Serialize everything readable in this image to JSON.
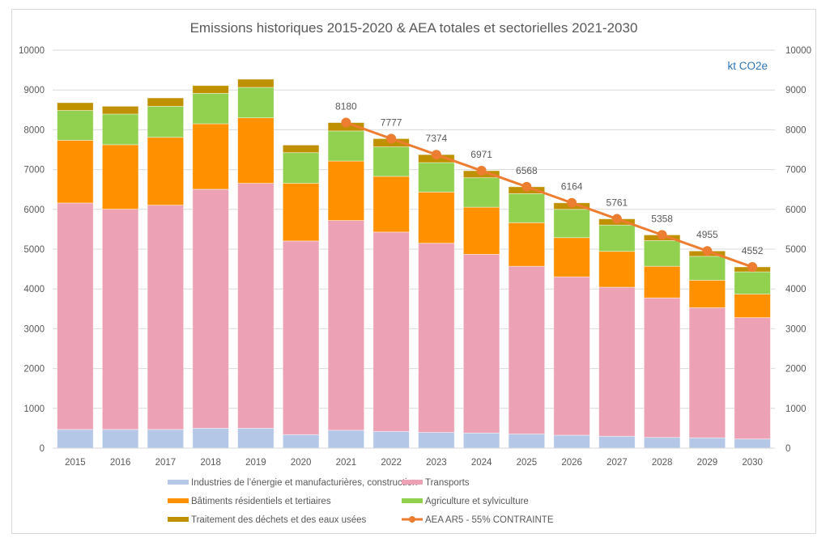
{
  "chart_data": {
    "type": "bar",
    "stacked": true,
    "title": "Emissions historiques 2015-2020 & AEA totales et sectorielles 2021-2030",
    "unit_label": "kt CO2e",
    "xlabel": "",
    "ylabel": "",
    "ylim": [
      0,
      10000
    ],
    "y_ticks": [
      0,
      1000,
      2000,
      3000,
      4000,
      5000,
      6000,
      7000,
      8000,
      9000,
      10000
    ],
    "y_ticks_right": [
      0,
      1000,
      2000,
      3000,
      4000,
      5000,
      6000,
      7000,
      8000,
      9000,
      10000
    ],
    "grid": true,
    "legend_position": "bottom",
    "categories": [
      "2015",
      "2016",
      "2017",
      "2018",
      "2019",
      "2020",
      "2021",
      "2022",
      "2023",
      "2024",
      "2025",
      "2026",
      "2027",
      "2028",
      "2029",
      "2030"
    ],
    "series": [
      {
        "name": "Industries de l’énergie et manufacturières, construction",
        "color": "#b4c7e7",
        "values": [
          470,
          470,
          470,
          500,
          500,
          340,
          450,
          420,
          395,
          380,
          355,
          325,
          300,
          270,
          260,
          230
        ]
      },
      {
        "name": "Transports",
        "color": "#eca2b4",
        "values": [
          5690,
          5535,
          5635,
          6005,
          6155,
          4865,
          5270,
          5010,
          4755,
          4490,
          4215,
          3980,
          3745,
          3505,
          3270,
          3050
        ]
      },
      {
        "name": "Bâtiments résidentiels et tertiaires",
        "color": "#ff9000",
        "values": [
          1575,
          1620,
          1705,
          1645,
          1645,
          1450,
          1495,
          1400,
          1285,
          1185,
          1095,
          985,
          900,
          795,
          690,
          590
        ]
      },
      {
        "name": "Agriculture et sylviculture",
        "color": "#92d050",
        "values": [
          750,
          770,
          780,
          765,
          765,
          770,
          755,
          740,
          740,
          740,
          730,
          710,
          660,
          645,
          600,
          560
        ]
      },
      {
        "name": "Traitement des déchets et des eaux usées",
        "color": "#bf9000",
        "values": [
          195,
          195,
          210,
          195,
          205,
          190,
          210,
          207,
          200,
          176,
          173,
          164,
          156,
          143,
          134,
          124
        ]
      }
    ],
    "line_series": {
      "name": "AEA AR5 - 55% CONTRAINTE",
      "color": "#ed7d31",
      "categories": [
        "2021",
        "2022",
        "2023",
        "2024",
        "2025",
        "2026",
        "2027",
        "2028",
        "2029",
        "2030"
      ],
      "values": [
        8180,
        7777,
        7374,
        6971,
        6568,
        6164,
        5761,
        5358,
        4955,
        4552
      ],
      "data_labels": [
        "8180",
        "7777",
        "7374",
        "6971",
        "6568",
        "6164",
        "5761",
        "5358",
        "4955",
        "4552"
      ]
    },
    "legend": [
      {
        "label": "Industries de l’énergie et manufacturières, construction",
        "kind": "bar",
        "color": "#b4c7e7"
      },
      {
        "label": "Transports",
        "kind": "bar",
        "color": "#eca2b4"
      },
      {
        "label": "Bâtiments résidentiels et tertiaires",
        "kind": "bar",
        "color": "#ff9000"
      },
      {
        "label": "Agriculture et sylviculture",
        "kind": "bar",
        "color": "#92d050"
      },
      {
        "label": "Traitement des déchets et des eaux usées",
        "kind": "bar",
        "color": "#bf9000"
      },
      {
        "label": "AEA AR5 - 55% CONTRAINTE",
        "kind": "line",
        "color": "#ed7d31"
      }
    ]
  }
}
